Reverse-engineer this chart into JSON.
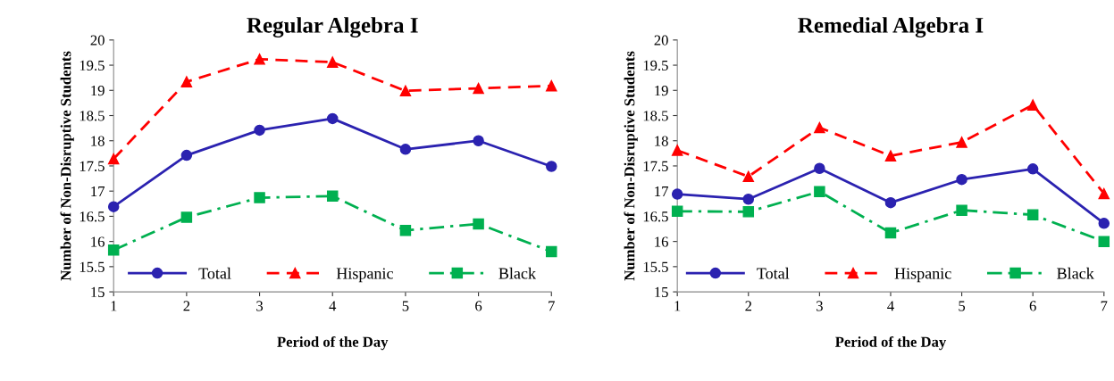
{
  "chart_data": [
    {
      "type": "line",
      "title": "Regular Algebra I",
      "xlabel": "Period of the Day",
      "ylabel": "Number of Non-Disruptive Students",
      "x": [
        1,
        2,
        3,
        4,
        5,
        6,
        7
      ],
      "xlim": [
        1,
        7
      ],
      "xticks": [
        1,
        2,
        3,
        4,
        5,
        6,
        7
      ],
      "ylim": [
        15,
        20
      ],
      "yticks": [
        15,
        15.5,
        16,
        16.5,
        17,
        17.5,
        18,
        18.5,
        19,
        19.5,
        20
      ],
      "grid": false,
      "legend": "bottom",
      "series": [
        {
          "name": "Total",
          "color": "#2b22b0",
          "marker": "circle",
          "line_style": "solid",
          "values": [
            16.69,
            17.71,
            18.21,
            18.44,
            17.83,
            18.0,
            17.49
          ]
        },
        {
          "name": "Hispanic",
          "color": "#ff0000",
          "marker": "triangle",
          "line_style": "dashed",
          "values": [
            17.64,
            19.17,
            19.62,
            19.56,
            18.99,
            19.04,
            19.09
          ]
        },
        {
          "name": "Black",
          "color": "#00b050",
          "marker": "square",
          "line_style": "dashdot",
          "values": [
            15.83,
            16.48,
            16.87,
            16.9,
            16.22,
            16.35,
            15.8
          ]
        }
      ]
    },
    {
      "type": "line",
      "title": "Remedial Algebra I",
      "xlabel": "Period of the Day",
      "ylabel": "Number of Non-Disruptive Students",
      "x": [
        1,
        2,
        3,
        4,
        5,
        6,
        7
      ],
      "xlim": [
        1,
        7
      ],
      "xticks": [
        1,
        2,
        3,
        4,
        5,
        6,
        7
      ],
      "ylim": [
        15,
        20
      ],
      "yticks": [
        15,
        15.5,
        16,
        16.5,
        17,
        17.5,
        18,
        18.5,
        19,
        19.5,
        20
      ],
      "grid": false,
      "legend": "bottom",
      "series": [
        {
          "name": "Total",
          "color": "#2b22b0",
          "marker": "circle",
          "line_style": "solid",
          "values": [
            16.94,
            16.84,
            17.45,
            16.77,
            17.23,
            17.44,
            16.36
          ]
        },
        {
          "name": "Hispanic",
          "color": "#ff0000",
          "marker": "triangle",
          "line_style": "dashed",
          "values": [
            17.81,
            17.29,
            18.26,
            17.7,
            17.97,
            18.71,
            16.95
          ]
        },
        {
          "name": "Black",
          "color": "#00b050",
          "marker": "square",
          "line_style": "dashdot",
          "values": [
            16.6,
            16.59,
            16.99,
            16.17,
            16.62,
            16.53,
            16.0
          ]
        }
      ]
    }
  ]
}
